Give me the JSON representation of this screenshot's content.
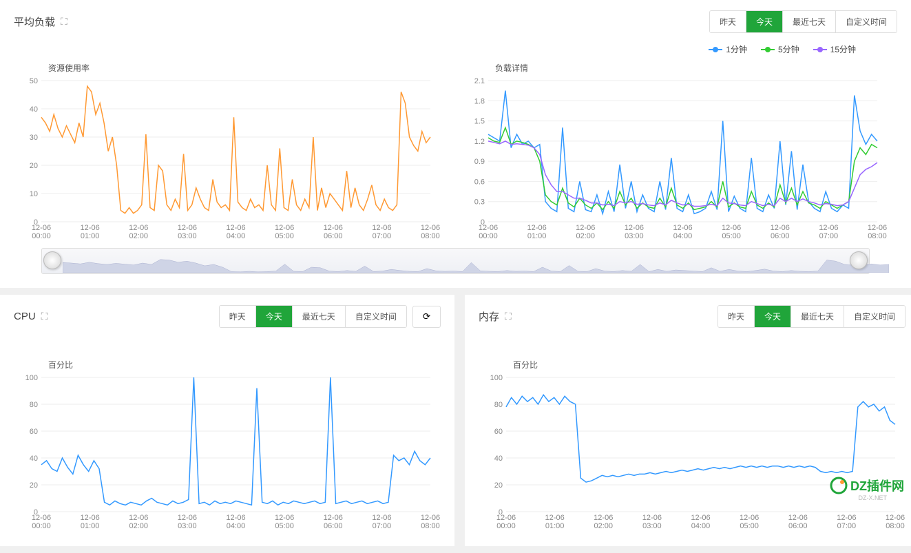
{
  "timeButtons": {
    "yesterday": "昨天",
    "today": "今天",
    "last7": "最近七天",
    "custom": "自定义时间"
  },
  "panels": {
    "load": {
      "title": "平均负载",
      "chart1": {
        "title": "资源使用率",
        "ylim": [
          0,
          50
        ],
        "ystep": 10,
        "color": "#ff9933",
        "xlabels": [
          "12-06\n00:00",
          "12-06\n01:00",
          "12-06\n02:00",
          "12-06\n03:00",
          "12-06\n04:00",
          "12-06\n05:00",
          "12-06\n06:00",
          "12-06\n07:00",
          "12-06\n08:00"
        ],
        "values": [
          37,
          35,
          32,
          38,
          33,
          30,
          34,
          31,
          28,
          35,
          30,
          48,
          46,
          38,
          42,
          35,
          25,
          30,
          20,
          4,
          3,
          5,
          3,
          4,
          6,
          31,
          5,
          4,
          20,
          18,
          6,
          4,
          8,
          5,
          24,
          4,
          6,
          12,
          8,
          5,
          4,
          15,
          7,
          5,
          6,
          4,
          37,
          7,
          5,
          4,
          8,
          5,
          6,
          4,
          20,
          6,
          4,
          26,
          5,
          4,
          15,
          6,
          4,
          8,
          5,
          30,
          4,
          12,
          5,
          10,
          8,
          6,
          4,
          18,
          5,
          12,
          6,
          4,
          8,
          13,
          6,
          4,
          8,
          5,
          4,
          6,
          46,
          42,
          30,
          27,
          25,
          32,
          28,
          30
        ]
      },
      "chart2": {
        "title": "负载详情",
        "ylim": [
          0,
          2.1
        ],
        "yticks": [
          0,
          0.3,
          0.6,
          0.9,
          1.2,
          1.5,
          1.8,
          2.1
        ],
        "xlabels": [
          "12-06\n00:00",
          "12-06\n01:00",
          "12-06\n02:00",
          "12-06\n03:00",
          "12-06\n04:00",
          "12-06\n05:00",
          "12-06\n06:00",
          "12-06\n07:00",
          "12-06\n08:00"
        ],
        "legend": [
          {
            "label": "1分钟",
            "color": "#3399ff"
          },
          {
            "label": "5分钟",
            "color": "#33cc33"
          },
          {
            "label": "15分钟",
            "color": "#9966ff"
          }
        ],
        "series": {
          "s1": {
            "color": "#3399ff",
            "values": [
              1.3,
              1.25,
              1.2,
              1.95,
              1.1,
              1.3,
              1.15,
              1.2,
              1.1,
              1.15,
              0.3,
              0.2,
              0.15,
              1.4,
              0.2,
              0.15,
              0.6,
              0.18,
              0.15,
              0.4,
              0.12,
              0.45,
              0.15,
              0.85,
              0.2,
              0.6,
              0.15,
              0.4,
              0.2,
              0.15,
              0.6,
              0.18,
              0.95,
              0.2,
              0.15,
              0.4,
              0.12,
              0.15,
              0.2,
              0.45,
              0.18,
              1.5,
              0.15,
              0.38,
              0.2,
              0.15,
              0.95,
              0.2,
              0.15,
              0.4,
              0.2,
              1.2,
              0.25,
              1.05,
              0.18,
              0.85,
              0.3,
              0.2,
              0.15,
              0.45,
              0.2,
              0.15,
              0.25,
              0.2,
              1.88,
              1.35,
              1.15,
              1.3,
              1.2
            ]
          },
          "s2": {
            "color": "#33cc33",
            "values": [
              1.25,
              1.2,
              1.18,
              1.4,
              1.15,
              1.2,
              1.18,
              1.15,
              1.1,
              0.9,
              0.4,
              0.3,
              0.25,
              0.5,
              0.28,
              0.22,
              0.35,
              0.25,
              0.2,
              0.28,
              0.18,
              0.3,
              0.2,
              0.45,
              0.25,
              0.35,
              0.2,
              0.28,
              0.22,
              0.2,
              0.35,
              0.22,
              0.5,
              0.25,
              0.2,
              0.28,
              0.18,
              0.2,
              0.22,
              0.3,
              0.22,
              0.6,
              0.22,
              0.28,
              0.22,
              0.2,
              0.45,
              0.25,
              0.2,
              0.28,
              0.22,
              0.55,
              0.28,
              0.5,
              0.25,
              0.45,
              0.28,
              0.25,
              0.2,
              0.3,
              0.25,
              0.2,
              0.25,
              0.3,
              0.9,
              1.1,
              1.0,
              1.15,
              1.1
            ]
          },
          "s3": {
            "color": "#9966ff",
            "values": [
              1.2,
              1.18,
              1.16,
              1.2,
              1.15,
              1.16,
              1.15,
              1.14,
              1.1,
              1.0,
              0.7,
              0.55,
              0.45,
              0.45,
              0.4,
              0.35,
              0.35,
              0.32,
              0.28,
              0.28,
              0.25,
              0.26,
              0.24,
              0.3,
              0.28,
              0.3,
              0.26,
              0.27,
              0.25,
              0.24,
              0.28,
              0.25,
              0.32,
              0.28,
              0.25,
              0.26,
              0.23,
              0.23,
              0.24,
              0.26,
              0.24,
              0.35,
              0.28,
              0.27,
              0.25,
              0.24,
              0.3,
              0.27,
              0.24,
              0.26,
              0.24,
              0.35,
              0.3,
              0.35,
              0.3,
              0.34,
              0.3,
              0.28,
              0.25,
              0.27,
              0.26,
              0.24,
              0.25,
              0.3,
              0.5,
              0.7,
              0.78,
              0.82,
              0.88
            ]
          }
        }
      }
    },
    "cpu": {
      "title": "CPU",
      "chart": {
        "title": "百分比",
        "ylim": [
          0,
          100
        ],
        "ystep": 20,
        "color": "#3399ff",
        "xlabels": [
          "12-06\n00:00",
          "12-06\n01:00",
          "12-06\n02:00",
          "12-06\n03:00",
          "12-06\n04:00",
          "12-06\n05:00",
          "12-06\n06:00",
          "12-06\n07:00",
          "12-06\n08:00"
        ],
        "values": [
          35,
          38,
          32,
          30,
          40,
          33,
          28,
          42,
          35,
          30,
          38,
          32,
          7,
          5,
          8,
          6,
          5,
          7,
          6,
          5,
          8,
          10,
          7,
          6,
          5,
          8,
          6,
          7,
          9,
          100,
          6,
          7,
          5,
          8,
          6,
          7,
          6,
          8,
          7,
          6,
          5,
          92,
          7,
          6,
          8,
          5,
          7,
          6,
          8,
          7,
          6,
          7,
          8,
          6,
          7,
          100,
          6,
          7,
          8,
          6,
          7,
          8,
          6,
          7,
          8,
          6,
          7,
          42,
          38,
          40,
          35,
          45,
          38,
          35,
          40
        ]
      }
    },
    "mem": {
      "title": "内存",
      "chart": {
        "title": "百分比",
        "ylim": [
          0,
          100
        ],
        "ystep": 20,
        "color": "#3399ff",
        "xlabels": [
          "12-06\n00:00",
          "12-06\n01:00",
          "12-06\n02:00",
          "12-06\n03:00",
          "12-06\n04:00",
          "12-06\n05:00",
          "12-06\n06:00",
          "12-06\n07:00",
          "12-06\n08:00"
        ],
        "values": [
          78,
          85,
          80,
          86,
          82,
          85,
          80,
          87,
          82,
          85,
          80,
          86,
          82,
          80,
          25,
          22,
          23,
          25,
          27,
          26,
          27,
          26,
          27,
          28,
          27,
          28,
          28,
          29,
          28,
          29,
          30,
          29,
          30,
          31,
          30,
          31,
          32,
          31,
          32,
          33,
          32,
          33,
          32,
          33,
          34,
          33,
          34,
          33,
          34,
          33,
          34,
          34,
          33,
          34,
          33,
          34,
          33,
          34,
          33,
          30,
          29,
          30,
          29,
          30,
          29,
          30,
          78,
          82,
          78,
          80,
          75,
          78,
          68,
          65
        ]
      }
    }
  },
  "watermark": {
    "text": "DZ插件网",
    "sub": "DZ-X.NET"
  }
}
